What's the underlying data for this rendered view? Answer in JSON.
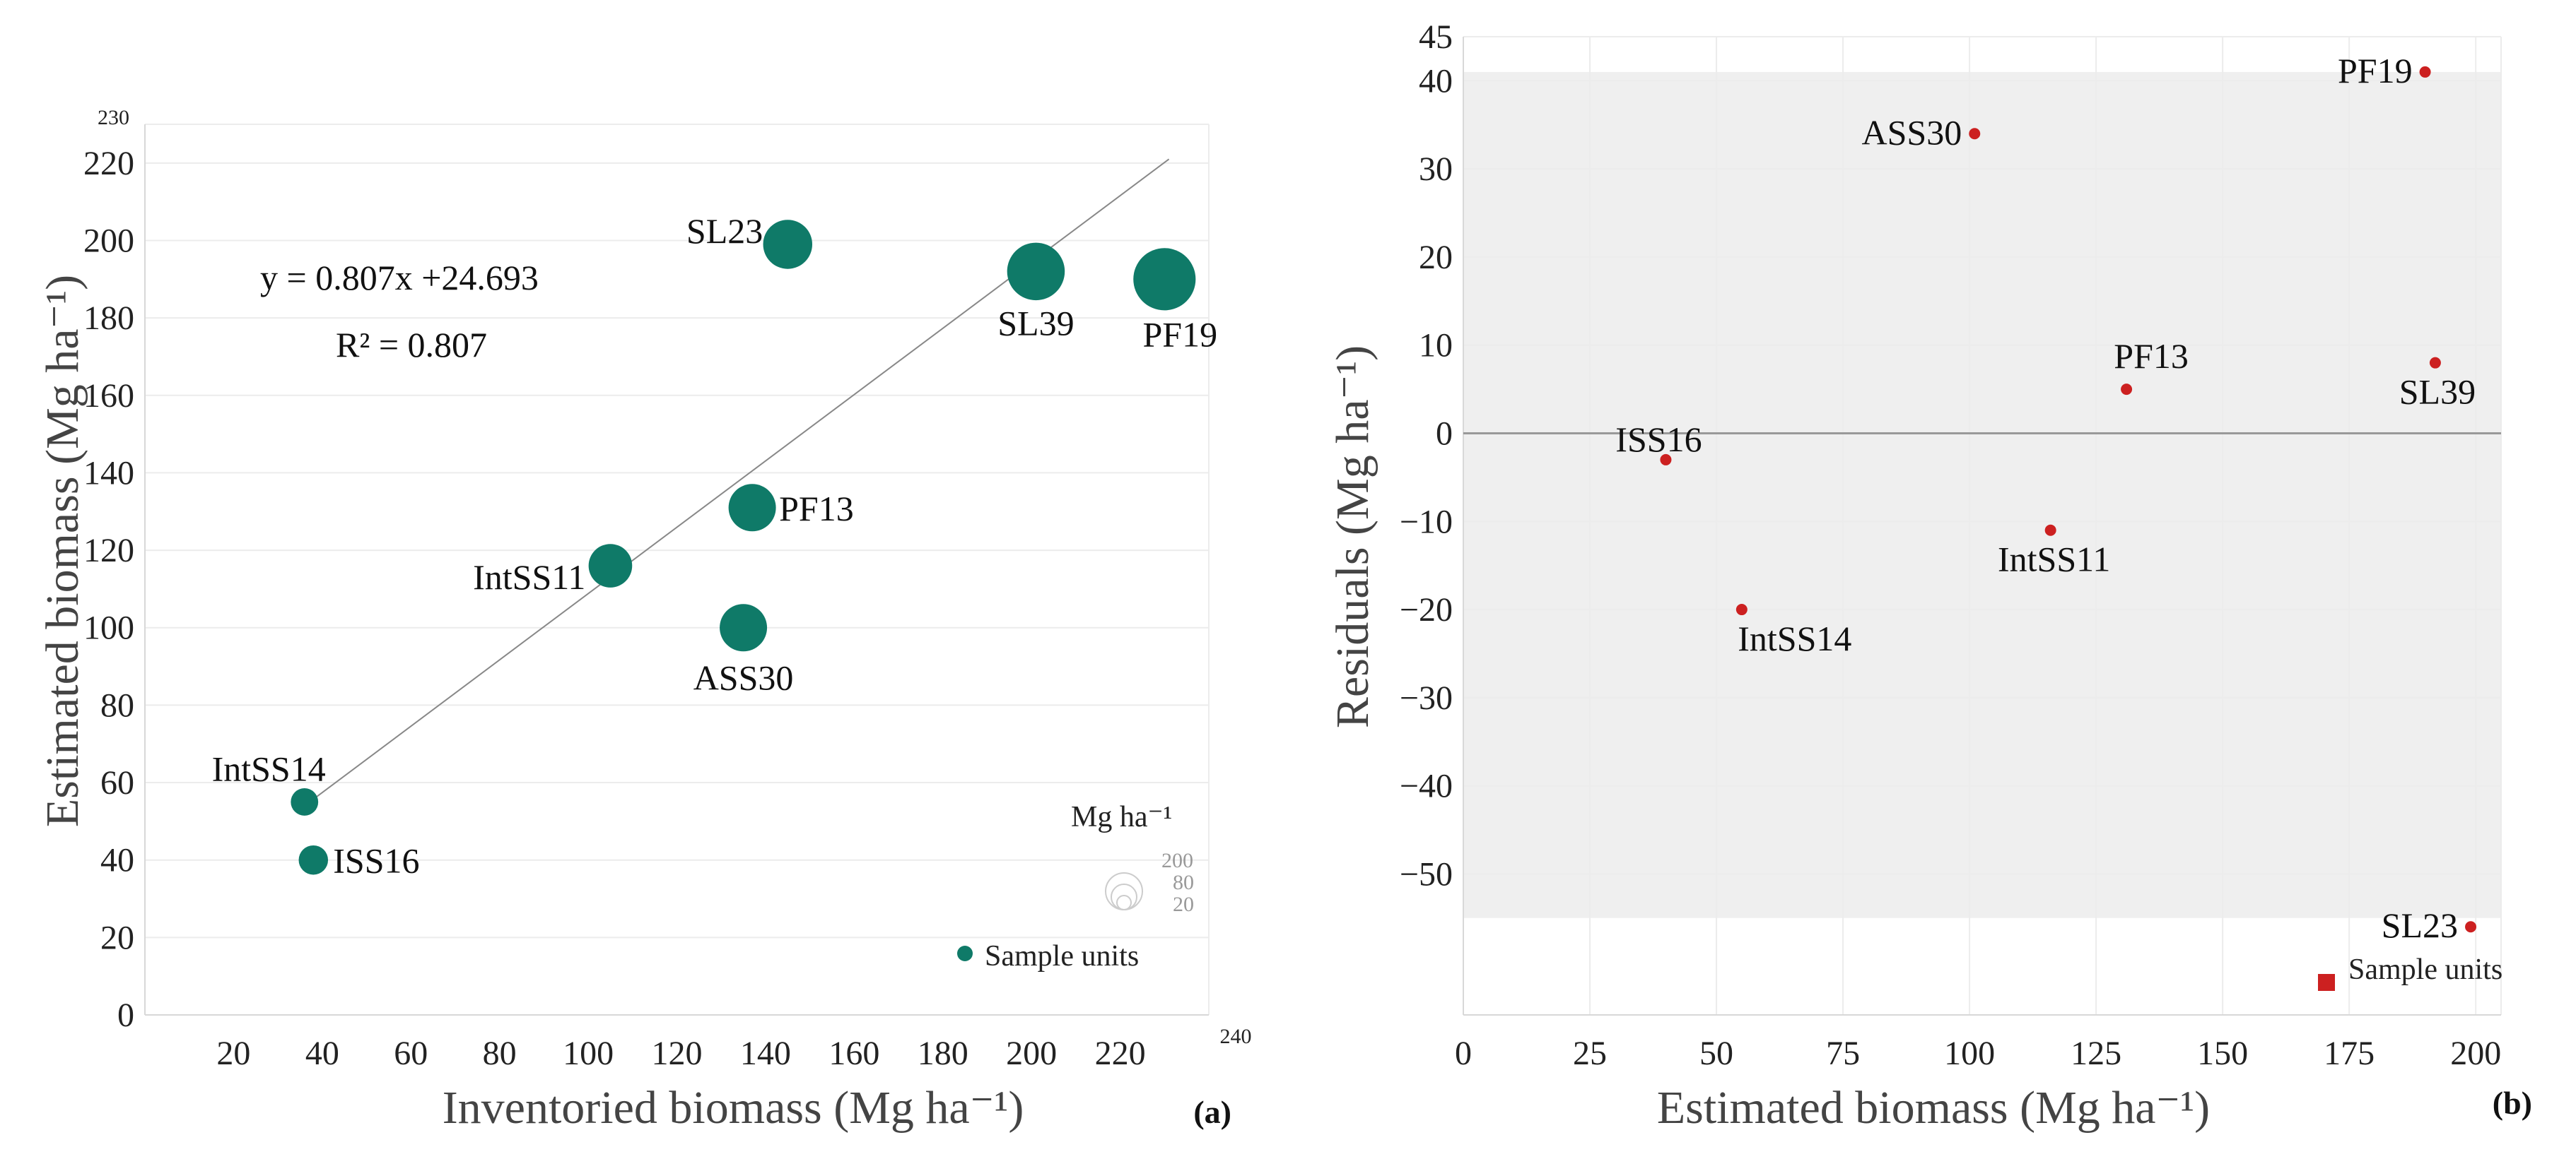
{
  "colors": {
    "bubble": "#0f7a68",
    "residual_point": "#cc2020",
    "band": "#efefef",
    "fit_line": "#888888",
    "zero_line": "#999999"
  },
  "chart_data": [
    {
      "id": "a",
      "type": "scatter",
      "panel_label": "(a)",
      "xlabel": "Inventoried biomass (Mg ha⁻¹)",
      "ylabel": "Estimated biomass (Mg ha⁻¹)",
      "xlim": [
        0,
        240
      ],
      "ylim": [
        0,
        230
      ],
      "x_ticks": [
        20,
        40,
        60,
        80,
        100,
        120,
        140,
        160,
        180,
        200,
        220
      ],
      "y_ticks": [
        0,
        20,
        40,
        60,
        80,
        100,
        120,
        140,
        160,
        180,
        200,
        220
      ],
      "x_max_label": "240",
      "y_max_label": "230",
      "equation": "y = 0.807x +24.693",
      "r_squared": "R² = 0.807",
      "fit_line": {
        "x1": 36,
        "y1": 54,
        "x2": 231,
        "y2": 221
      },
      "points": [
        {
          "name": "IntSS14",
          "x": 36,
          "y": 55,
          "size": 20
        },
        {
          "name": "ISS16",
          "x": 38,
          "y": 40,
          "size": 25
        },
        {
          "name": "IntSS11",
          "x": 105,
          "y": 116,
          "size": 80
        },
        {
          "name": "PF13",
          "x": 137,
          "y": 131,
          "size": 100
        },
        {
          "name": "ASS30",
          "x": 135,
          "y": 100,
          "size": 100
        },
        {
          "name": "SL23",
          "x": 145,
          "y": 199,
          "size": 110
        },
        {
          "name": "SL39",
          "x": 201,
          "y": 192,
          "size": 165
        },
        {
          "name": "PF19",
          "x": 230,
          "y": 190,
          "size": 200
        }
      ],
      "legend": {
        "unit_label": "Mg ha⁻¹",
        "sizes": [
          "200",
          "80",
          "20"
        ],
        "series_label": "Sample units"
      }
    },
    {
      "id": "b",
      "type": "scatter",
      "panel_label": "(b)",
      "xlabel": "Estimated biomass (Mg ha⁻¹)",
      "ylabel": "Residuals (Mg ha⁻¹)",
      "xlim": [
        0,
        205
      ],
      "ylim": [
        -66,
        45
      ],
      "x_ticks": [
        0,
        25,
        50,
        75,
        100,
        125,
        150,
        175,
        200
      ],
      "y_ticks": [
        -50,
        -40,
        -30,
        -20,
        -10,
        0,
        10,
        20,
        30,
        40
      ],
      "y_max_label": "45",
      "band": [
        -55,
        41
      ],
      "points": [
        {
          "name": "PF19",
          "x": 190,
          "y": 41
        },
        {
          "name": "ASS30",
          "x": 101,
          "y": 34
        },
        {
          "name": "PF13",
          "x": 131,
          "y": 5
        },
        {
          "name": "SL39",
          "x": 192,
          "y": 8
        },
        {
          "name": "ISS16",
          "x": 40,
          "y": -3
        },
        {
          "name": "IntSS11",
          "x": 116,
          "y": -11
        },
        {
          "name": "IntSS14",
          "x": 55,
          "y": -20
        },
        {
          "name": "SL23",
          "x": 199,
          "y": -56
        }
      ],
      "legend": {
        "series_label": "Sample units"
      }
    }
  ]
}
